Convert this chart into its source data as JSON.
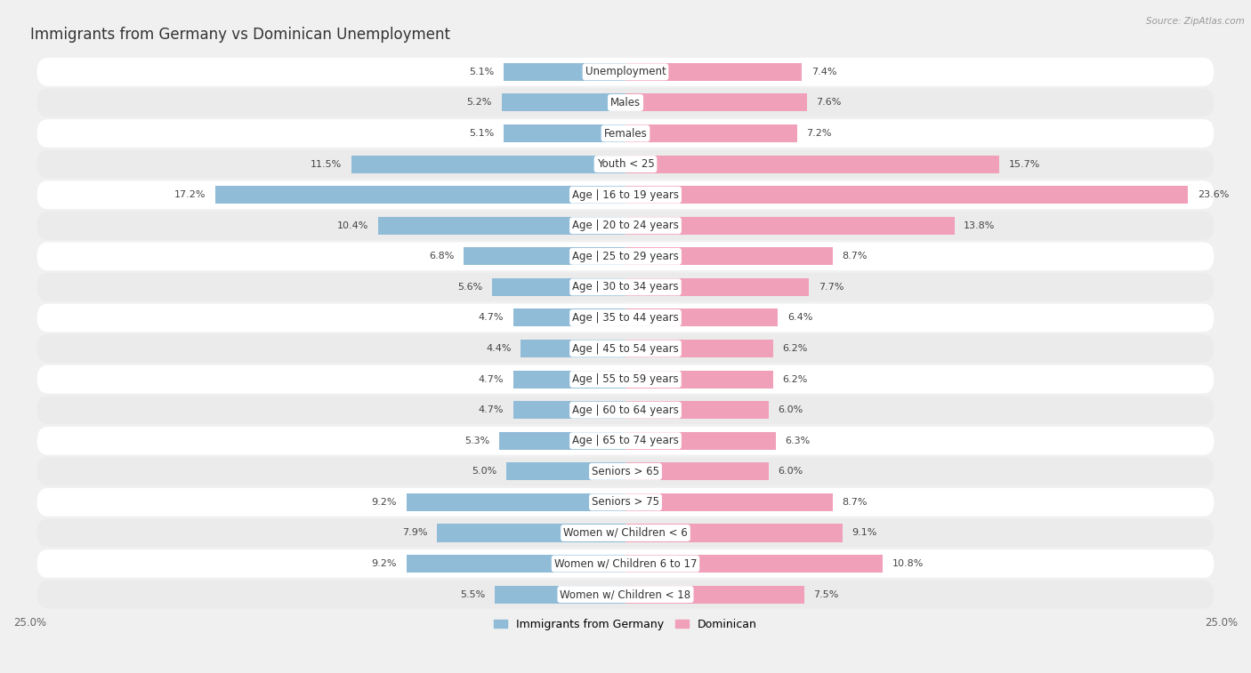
{
  "title": "Immigrants from Germany vs Dominican Unemployment",
  "source": "Source: ZipAtlas.com",
  "categories": [
    "Unemployment",
    "Males",
    "Females",
    "Youth < 25",
    "Age | 16 to 19 years",
    "Age | 20 to 24 years",
    "Age | 25 to 29 years",
    "Age | 30 to 34 years",
    "Age | 35 to 44 years",
    "Age | 45 to 54 years",
    "Age | 55 to 59 years",
    "Age | 60 to 64 years",
    "Age | 65 to 74 years",
    "Seniors > 65",
    "Seniors > 75",
    "Women w/ Children < 6",
    "Women w/ Children 6 to 17",
    "Women w/ Children < 18"
  ],
  "germany_values": [
    5.1,
    5.2,
    5.1,
    11.5,
    17.2,
    10.4,
    6.8,
    5.6,
    4.7,
    4.4,
    4.7,
    4.7,
    5.3,
    5.0,
    9.2,
    7.9,
    9.2,
    5.5
  ],
  "dominican_values": [
    7.4,
    7.6,
    7.2,
    15.7,
    23.6,
    13.8,
    8.7,
    7.7,
    6.4,
    6.2,
    6.2,
    6.0,
    6.3,
    6.0,
    8.7,
    9.1,
    10.8,
    7.5
  ],
  "germany_color": "#91bcd8",
  "dominican_color": "#f0a0b8",
  "row_light_color": "#ffffff",
  "row_dark_color": "#ebebeb",
  "background_color": "#f0f0f0",
  "axis_limit": 25.0,
  "bar_height": 0.58,
  "title_fontsize": 12,
  "label_fontsize": 8.5,
  "value_fontsize": 8.0,
  "legend_fontsize": 9,
  "legend_label_germany": "Immigrants from Germany",
  "legend_label_dominican": "Dominican"
}
